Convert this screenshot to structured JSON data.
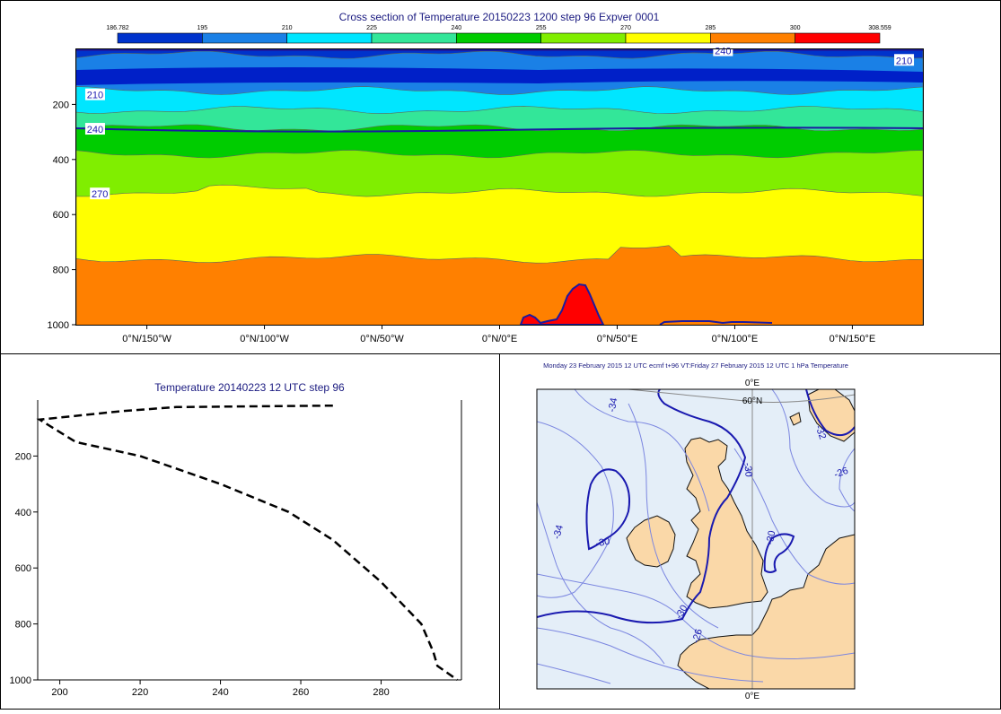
{
  "chart_data": [
    {
      "type": "heatmap",
      "title": "Cross section of Temperature 20150223 1200 step 96 Expver 0001",
      "legend": {
        "position": "top",
        "bounds": [
          "186.782",
          "195",
          "210",
          "225",
          "240",
          "255",
          "270",
          "285",
          "300",
          "308.559"
        ],
        "colors": [
          "#0033cc",
          "#1a80e6",
          "#00e6ff",
          "#33e699",
          "#00cc00",
          "#80ee00",
          "#ffff00",
          "#ff8000",
          "#ff0000"
        ]
      },
      "xlabels": [
        "0°N/150°W",
        "0°N/100°W",
        "0°N/50°W",
        "0°N/0°E",
        "0°N/50°E",
        "0°N/100°E",
        "0°N/150°E"
      ],
      "x_values": [
        -150,
        -100,
        -50,
        0,
        50,
        100,
        150
      ],
      "xlim": [
        -180,
        180
      ],
      "ylabels": [
        "200",
        "400",
        "600",
        "800",
        "1000"
      ],
      "y_values": [
        200,
        400,
        600,
        800,
        1000
      ],
      "ylim": [
        0,
        1000
      ],
      "y_inverted": true,
      "contour_labels": [
        {
          "text": "240",
          "x": 95,
          "y": 5
        },
        {
          "text": "210",
          "x": 172,
          "y": 40
        },
        {
          "text": "210",
          "x": -172,
          "y": 165
        },
        {
          "text": "240",
          "x": -172,
          "y": 290
        },
        {
          "text": "270",
          "x": -170,
          "y": 525
        }
      ],
      "bands": [
        {
          "bottom": 20,
          "color": "#0033cc"
        },
        {
          "bottom": 150,
          "color": "#1a80e6"
        },
        {
          "bottom": 220,
          "color": "#00e6ff"
        },
        {
          "bottom": 285,
          "color": "#33e699"
        },
        {
          "bottom": 380,
          "color": "#00cc00"
        },
        {
          "bottom": 520,
          "color": "#80ee00"
        },
        {
          "bottom": 760,
          "color": "#ffff00"
        },
        {
          "bottom": 1000,
          "color": "#ff8000"
        }
      ]
    },
    {
      "type": "line",
      "title": "Temperature 20140223 12 UTC step 96",
      "xlabels": [
        "200",
        "220",
        "240",
        "260",
        "280"
      ],
      "x_values": [
        200,
        220,
        240,
        260,
        280
      ],
      "xlim": [
        194.5,
        300
      ],
      "ylabels": [
        "200",
        "400",
        "600",
        "800",
        "1000"
      ],
      "y_values": [
        200,
        400,
        600,
        800,
        1000
      ],
      "ylim": [
        0,
        1000
      ],
      "y_inverted": true,
      "series": [
        {
          "style": "dashed",
          "x": [
            268,
            229,
            215,
            195,
            204,
            220,
            240,
            257,
            268,
            280,
            290,
            293,
            294,
            299
          ],
          "y": [
            20,
            25,
            40,
            70,
            150,
            200,
            300,
            400,
            500,
            650,
            800,
            900,
            950,
            1000
          ]
        }
      ]
    },
    {
      "type": "map",
      "title": "Monday 23 February 2015 12 UTC ecmf t+96 VT:Friday 27 February 2015 12 UTC 1 hPa Temperature",
      "lon_labels": [
        "0°E",
        "0°E"
      ],
      "lat_label": "60°N",
      "contour_labels": [
        "-34",
        "-34",
        "-30",
        "-30",
        "-30",
        "-30",
        "-32",
        "-26",
        "-26"
      ]
    }
  ]
}
